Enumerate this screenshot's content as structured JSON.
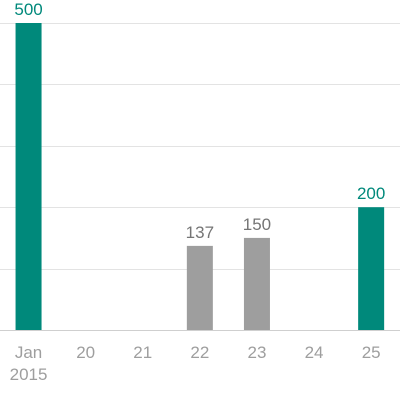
{
  "chart_data": {
    "type": "bar",
    "categories": [
      "Jan 2015",
      "20",
      "21",
      "22",
      "23",
      "24",
      "25"
    ],
    "category_lines": [
      [
        "Jan",
        "2015"
      ],
      [
        "20"
      ],
      [
        "21"
      ],
      [
        "22"
      ],
      [
        "23"
      ],
      [
        "24"
      ],
      [
        "25"
      ]
    ],
    "values": [
      500,
      null,
      null,
      137,
      150,
      null,
      200
    ],
    "value_labels": [
      "500",
      "",
      "",
      "137",
      "150",
      "",
      "200"
    ],
    "highlighted": [
      true,
      false,
      false,
      false,
      false,
      false,
      true
    ],
    "ylim": [
      0,
      500
    ],
    "grid": true,
    "legend": "none",
    "title": "",
    "xlabel": "",
    "ylabel": "",
    "colors": {
      "highlight": "#00897b",
      "normal": "#9e9e9e",
      "label_normal": "#757575"
    }
  }
}
